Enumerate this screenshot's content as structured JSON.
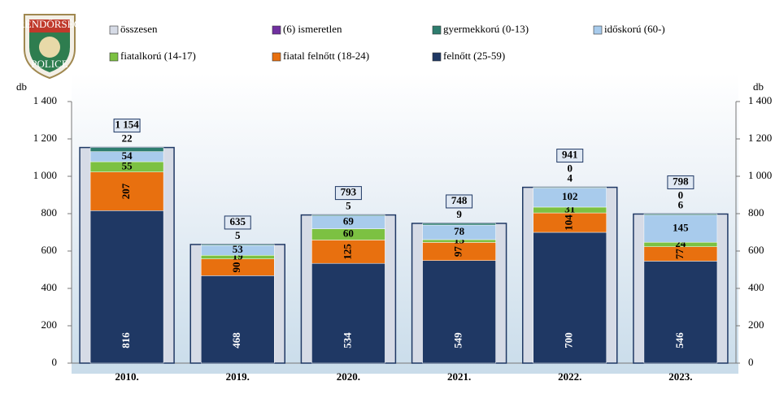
{
  "logo": {
    "top": "RENDŐRSÉG",
    "bottom": "POLICE"
  },
  "chart_data": {
    "type": "stacked_bar",
    "y_label": "db",
    "categories": [
      "2010.",
      "2019.",
      "2020.",
      "2021.",
      "2022.",
      "2023."
    ],
    "total": {
      "name": "összesen",
      "color": "#d6dbe6",
      "values": [
        1154,
        635,
        793,
        748,
        941,
        798
      ],
      "value_labels": [
        "1 154",
        "635",
        "793",
        "748",
        "941",
        "798"
      ]
    },
    "series": [
      {
        "name": "felnőtt (25-59)",
        "color": "#1f3864",
        "values": [
          816,
          468,
          534,
          549,
          700,
          546
        ]
      },
      {
        "name": "fiatal felnőtt (18-24)",
        "color": "#e8700f",
        "values": [
          207,
          90,
          125,
          97,
          104,
          77
        ]
      },
      {
        "name": "fiatalkorú (14-17)",
        "color": "#7cc142",
        "values": [
          55,
          19,
          60,
          15,
          31,
          24
        ]
      },
      {
        "name": "időskorú (60-)",
        "color": "#a8cbec",
        "values": [
          54,
          53,
          69,
          78,
          102,
          145
        ]
      },
      {
        "name": "gyermekkorú (0-13)",
        "color": "#2e7d6e",
        "values": [
          22,
          5,
          5,
          9,
          4,
          6
        ]
      },
      {
        "name": "(6) ismeretlen",
        "color": "#7030a0",
        "values": [
          null,
          null,
          null,
          null,
          0,
          0
        ]
      }
    ],
    "legend_order": [
      6,
      5,
      4,
      3,
      2,
      1,
      0
    ],
    "ylim": [
      0,
      1400
    ],
    "yticks": [
      0,
      200,
      400,
      600,
      800,
      {
        "value": 1000,
        "label": "1 000"
      },
      {
        "value": 1200,
        "label": "1 200"
      },
      {
        "value": 1400,
        "label": "1 400"
      }
    ]
  }
}
